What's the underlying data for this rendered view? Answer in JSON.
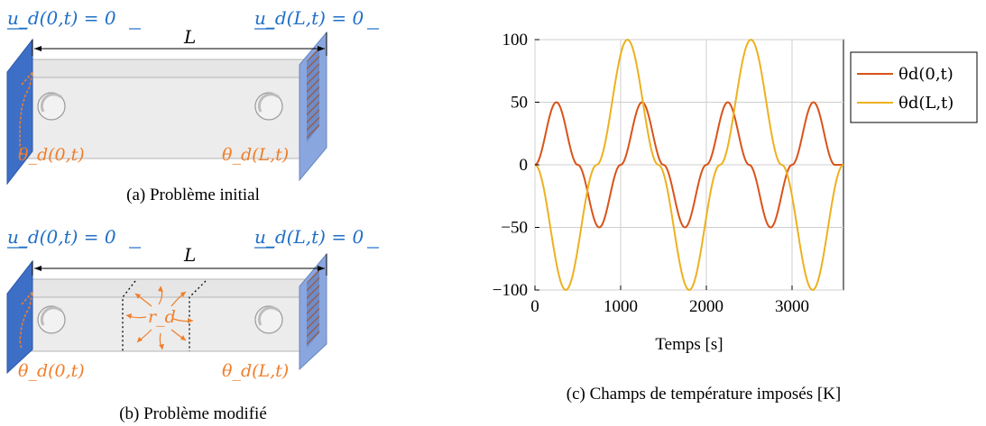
{
  "panel_a": {
    "left_bc": "u_d(0,t) = 0",
    "right_bc": "u_d(L,t) = 0",
    "length_label": "L",
    "left_temp": "θ_d(0,t)",
    "right_temp": "θ_d(L,t)",
    "caption": "(a) Problème initial"
  },
  "panel_b": {
    "left_bc": "u_d(0,t) = 0",
    "right_bc": "u_d(L,t) = 0",
    "length_label": "L",
    "left_temp": "θ_d(0,t)",
    "right_temp": "θ_d(L,t)",
    "source_label": "r_d",
    "caption": "(b) Problème modifié"
  },
  "panel_c": {
    "caption": "(c) Champs de température imposés [K]"
  },
  "colors": {
    "blue": "#1f6fc7",
    "wall_blue": "#8aa6de",
    "orange": "#ef7e2a",
    "series_1": "#d95319",
    "series_2": "#edb120"
  },
  "chart_data": {
    "type": "line",
    "xlabel": "Temps [s]",
    "ylabel": "",
    "xlim": [
      0,
      3600
    ],
    "ylim": [
      -100,
      100
    ],
    "xticks": [
      0,
      1000,
      2000,
      3000
    ],
    "yticks": [
      -100,
      -50,
      0,
      50,
      100
    ],
    "grid": true,
    "legend_position": "outside-right",
    "series": [
      {
        "name": "θd(0,t)",
        "color": "#d95319",
        "x": [
          0,
          250,
          500,
          750,
          1000,
          1250,
          1500,
          1750,
          2000,
          2250,
          2500,
          2750,
          3000,
          3250,
          3500,
          3600
        ],
        "y": [
          0,
          50,
          0,
          -50,
          0,
          50,
          0,
          -50,
          0,
          50,
          0,
          -50,
          0,
          50,
          0,
          0
        ]
      },
      {
        "name": "θd(L,t)",
        "color": "#edb120",
        "x": [
          0,
          360,
          720,
          1080,
          1440,
          1800,
          2160,
          2520,
          2880,
          3240,
          3600
        ],
        "y": [
          0,
          -100,
          0,
          100,
          0,
          -100,
          0,
          100,
          0,
          -100,
          0
        ]
      }
    ]
  }
}
